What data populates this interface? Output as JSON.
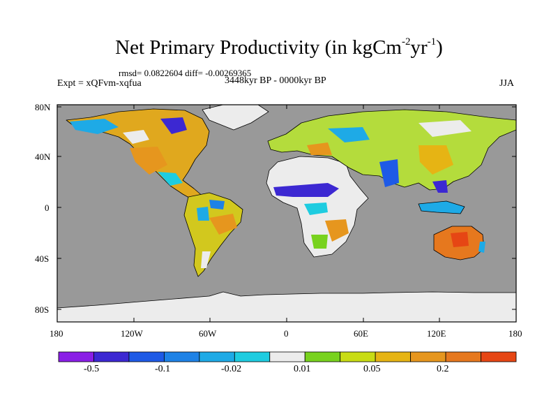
{
  "header": {
    "title_main": "Net Primary Productivity (in kgCm",
    "title_exp1": "-2",
    "title_mid": "yr",
    "title_exp2": "-1",
    "title_end": ")",
    "stats": "rmsd= 0.0822604 diff= -0.00269365",
    "experiment": "Expt = xQFvm-xqfua",
    "period": "3448kyr BP - 0000kyr BP",
    "season": "JJA"
  },
  "axes": {
    "lat_labels": [
      "80N",
      "40N",
      "0",
      "40S",
      "80S"
    ],
    "lon_labels": [
      "180",
      "120W",
      "60W",
      "0",
      "60E",
      "120E",
      "180"
    ]
  },
  "colorbar": {
    "colors": [
      "#8a1ee6",
      "#3c28d2",
      "#1e5ae6",
      "#1e82e6",
      "#1eaae6",
      "#1ecce0",
      "#ececec",
      "#78d21e",
      "#c8dc14",
      "#e6b414",
      "#e6961e",
      "#e6781e",
      "#e64614"
    ],
    "labels": [
      "-0.5",
      "-0.1",
      "-0.02",
      "0.01",
      "0.05",
      "0.2"
    ]
  },
  "map": {
    "ocean_color": "#999999",
    "ice_color": "#ececec"
  }
}
